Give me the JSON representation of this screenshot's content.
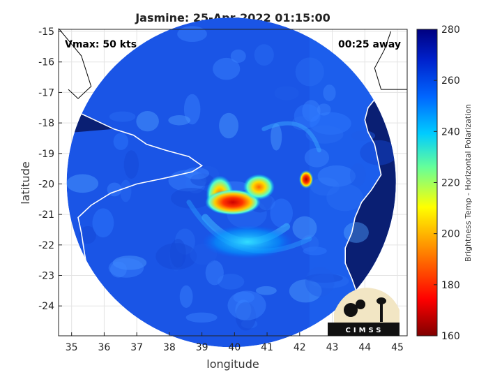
{
  "chart_data": {
    "type": "heatmap",
    "title": "Jasmine: 25-Apr-2022 01:15:00",
    "xlabel": "longitude",
    "ylabel": "latitude",
    "xlim": [
      34.6,
      45.3
    ],
    "ylim": [
      -24.98,
      -14.93
    ],
    "x_ticks": [
      "35",
      "36",
      "37",
      "38",
      "39",
      "40",
      "41",
      "42",
      "43",
      "44",
      "45"
    ],
    "y_ticks": [
      "-15",
      "-16",
      "-17",
      "-18",
      "-19",
      "-20",
      "-21",
      "-22",
      "-23",
      "-24"
    ],
    "grid": true,
    "annotations": {
      "vmax": "Vmax: 50 kts",
      "away": "00:25 away"
    },
    "colorbar": {
      "label": "Brightness Temp - Horizontal Polarization",
      "range": [
        160,
        280
      ],
      "ticks": [
        "280",
        "260",
        "240",
        "220",
        "200",
        "180",
        "160"
      ]
    },
    "disk": {
      "center": [
        39.9,
        -19.95
      ],
      "radius_deg": 5.05
    },
    "features": [
      {
        "name": "cold-arc-west",
        "lon": 39.55,
        "lat": -20.35,
        "value": 190
      },
      {
        "name": "cold-core",
        "lon": 39.95,
        "lat": -20.6,
        "value": 178
      },
      {
        "name": "cold-arc-east",
        "lon": 40.75,
        "lat": -20.1,
        "value": 192
      },
      {
        "name": "cold-spot-east",
        "lon": 42.2,
        "lat": -19.85,
        "value": 170
      },
      {
        "name": "rainband-south",
        "lon": 40.4,
        "lat": -21.9,
        "value": 238
      }
    ]
  },
  "logo": {
    "text": "CIMSS"
  },
  "colors": {
    "land_mask": "#0a1f73",
    "sea_base": "#1a55e6",
    "coastline": "#ffffff"
  }
}
